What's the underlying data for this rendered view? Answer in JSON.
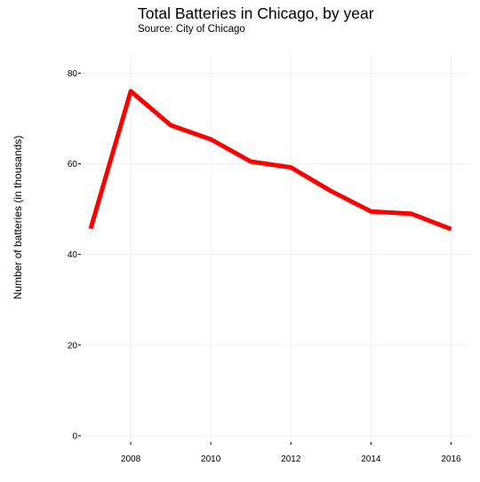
{
  "chart_data": {
    "type": "line",
    "title": "Total Batteries in Chicago, by year",
    "subtitle": "Source: City of Chicago",
    "xlabel": "",
    "ylabel": "Number of batteries (in thousands)",
    "x": [
      2007,
      2008,
      2009,
      2010,
      2011,
      2012,
      2013,
      2014,
      2015,
      2016
    ],
    "series": [
      {
        "values": [
          45.7,
          76.0,
          68.5,
          65.4,
          60.5,
          59.2,
          54.0,
          49.5,
          49.0,
          45.6
        ]
      }
    ],
    "x_ticks": [
      2008,
      2010,
      2012,
      2014,
      2016
    ],
    "y_ticks": [
      0,
      20,
      40,
      60,
      80
    ],
    "xlim": [
      2006.8,
      2016.5
    ],
    "ylim": [
      -1,
      84
    ],
    "grid": true,
    "legend": "none",
    "line_color": "#ff0000",
    "grid_color": "#f0f0f0"
  }
}
